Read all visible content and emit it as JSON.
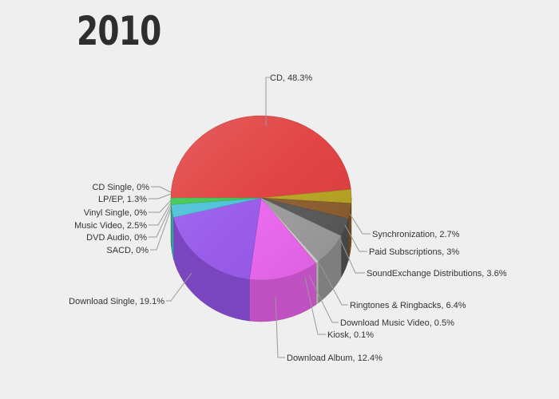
{
  "title": "2010",
  "chart_data": {
    "type": "pie",
    "title": "2010",
    "slices": [
      {
        "label": "CD",
        "value": 48.3,
        "text": "CD, 48.3%",
        "color": "#e03a3a"
      },
      {
        "label": "Synchronization",
        "value": 2.7,
        "text": "Synchronization, 2.7%",
        "color": "#b5a21e"
      },
      {
        "label": "Paid Subscriptions",
        "value": 3,
        "text": "Paid Subscriptions, 3%",
        "color": "#8a5a2a"
      },
      {
        "label": "SoundExchange Distributions",
        "value": 3.6,
        "text": "SoundExchange Distributions, 3.6%",
        "color": "#555555"
      },
      {
        "label": "Ringtones & Ringbacks",
        "value": 6.4,
        "text": "Ringtones & Ringbacks, 6.4%",
        "color": "#9a9a9a"
      },
      {
        "label": "Download Music Video",
        "value": 0.5,
        "text": "Download Music Video, 0.5%",
        "color": "#cfcfcf"
      },
      {
        "label": "Kiosk",
        "value": 0.1,
        "text": "Kiosk, 0.1%",
        "color": "#ff9ec8"
      },
      {
        "label": "Download Album",
        "value": 12.4,
        "text": "Download Album, 12.4%",
        "color": "#ea63ee"
      },
      {
        "label": "Download Single",
        "value": 19.1,
        "text": "Download Single, 19.1%",
        "color": "#9555ea"
      },
      {
        "label": "SACD",
        "value": 0,
        "text": "SACD, 0%",
        "color": "#5a6fd0"
      },
      {
        "label": "DVD Audio",
        "value": 0,
        "text": "DVD Audio, 0%",
        "color": "#4a86c8"
      },
      {
        "label": "Music Video",
        "value": 2.5,
        "text": "Music Video, 2.5%",
        "color": "#45bfd6"
      },
      {
        "label": "Vinyl Single",
        "value": 0,
        "text": "Vinyl Single, 0%",
        "color": "#2e8b8b"
      },
      {
        "label": "LP/EP",
        "value": 1.3,
        "text": "LP/EP, 1.3%",
        "color": "#38c54a"
      },
      {
        "label": "CD Single",
        "value": 0,
        "text": "CD Single, 0%",
        "color": "#e8d13a"
      }
    ]
  }
}
